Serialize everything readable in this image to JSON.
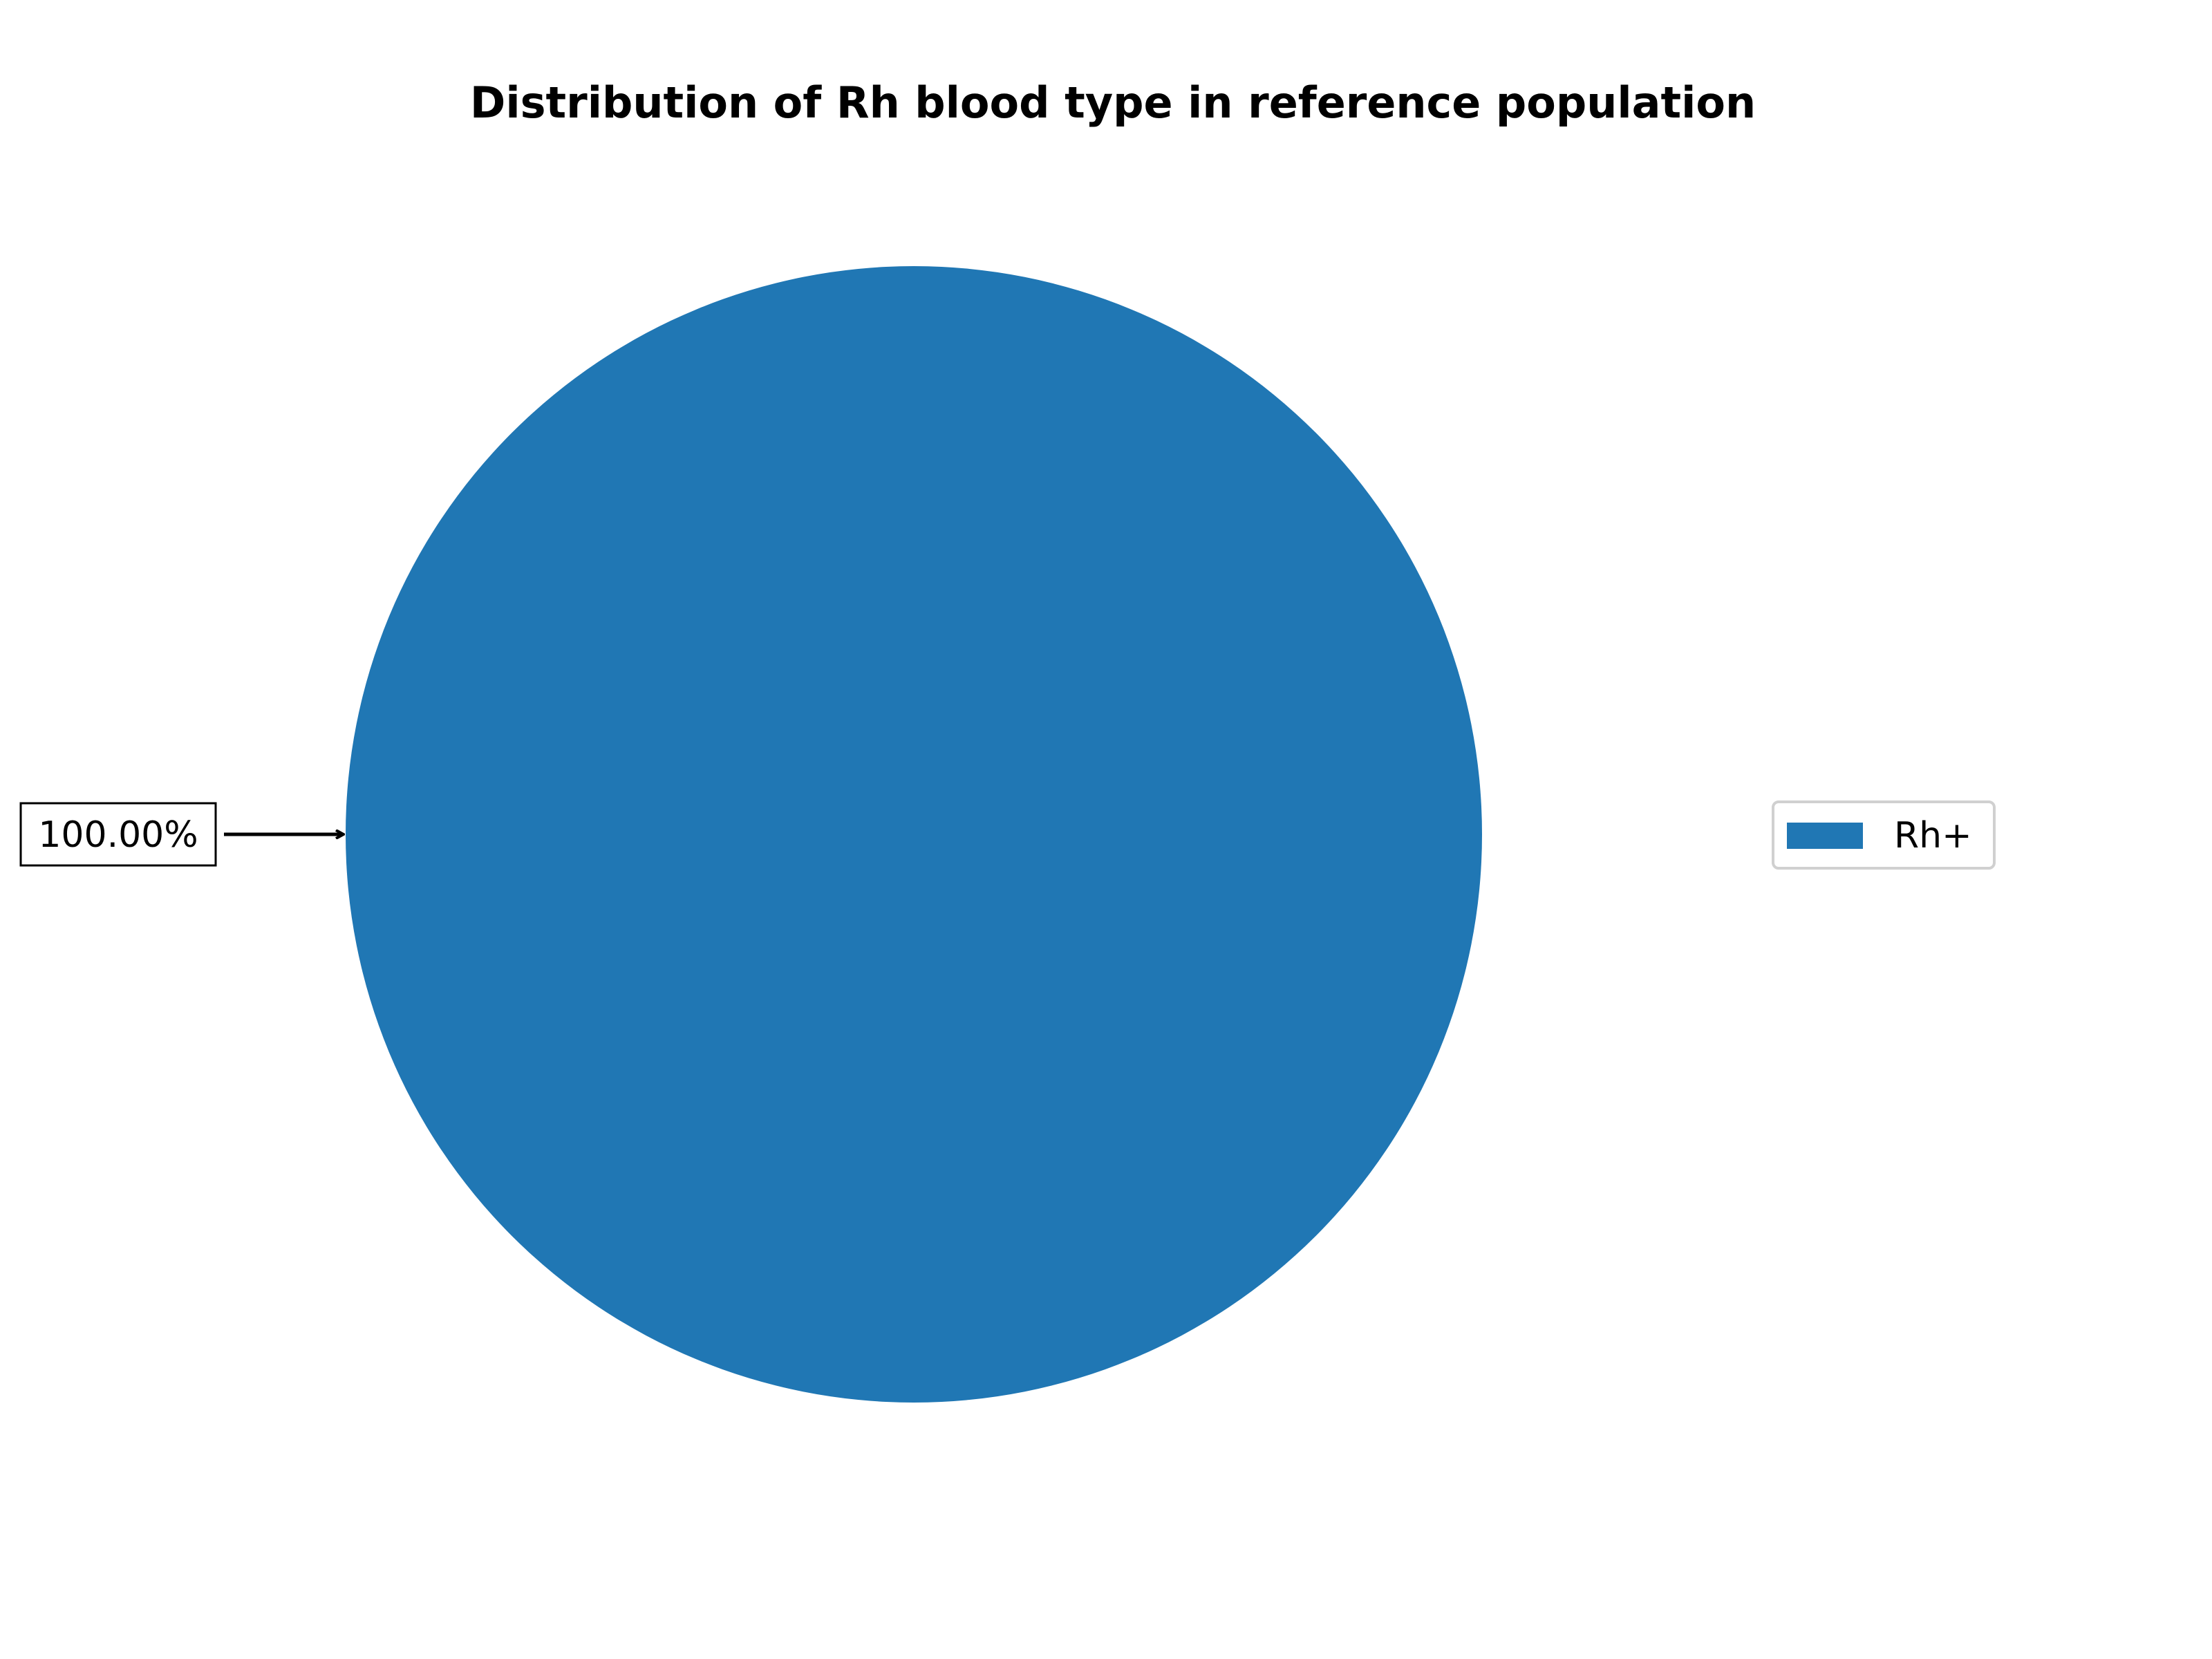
{
  "chart_data": {
    "type": "pie",
    "title": "Distribution of Rh blood type in reference population",
    "categories": [
      "Rh+"
    ],
    "values": [
      100.0
    ],
    "data_labels": [
      "100.00%"
    ],
    "colors": [
      "#2077b4"
    ],
    "legend": {
      "placement": "right",
      "entries": [
        "Rh+"
      ]
    }
  }
}
